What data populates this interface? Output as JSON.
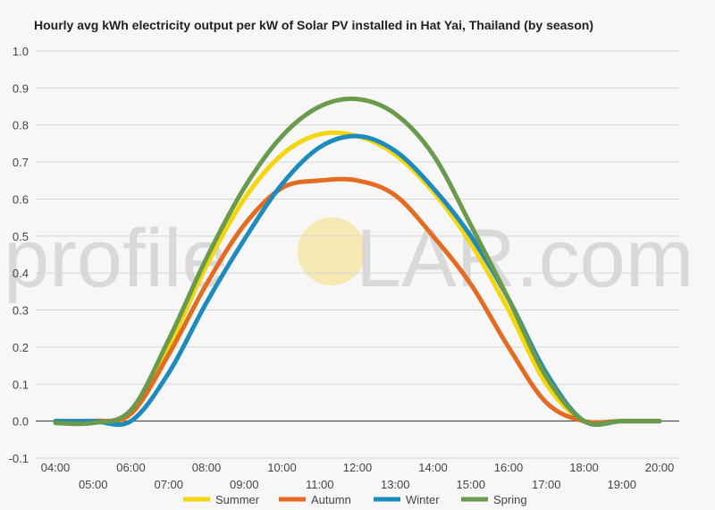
{
  "chart_data": {
    "type": "line",
    "title": "Hourly avg kWh electricity output per kW of Solar PV installed in Hat Yai, Thailand (by season)",
    "xlabel": "",
    "ylabel": "",
    "ylim": [
      -0.1,
      1.0
    ],
    "yticks": [
      "-0.1",
      "0.0",
      "0.1",
      "0.2",
      "0.3",
      "0.4",
      "0.5",
      "0.6",
      "0.7",
      "0.8",
      "0.9",
      "1.0"
    ],
    "x": [
      4,
      5,
      6,
      7,
      8,
      9,
      10,
      11,
      12,
      13,
      14,
      15,
      16,
      17,
      18,
      19,
      20
    ],
    "xticks": [
      "04:00",
      "05:00",
      "06:00",
      "07:00",
      "08:00",
      "09:00",
      "10:00",
      "11:00",
      "12:00",
      "13:00",
      "14:00",
      "15:00",
      "16:00",
      "17:00",
      "18:00",
      "19:00",
      "20:00"
    ],
    "grid": true,
    "legend_position": "bottom",
    "series": [
      {
        "name": "Summer",
        "color": "#f5d50c",
        "values": [
          0.0,
          0.0,
          0.02,
          0.2,
          0.42,
          0.6,
          0.72,
          0.775,
          0.77,
          0.72,
          0.62,
          0.48,
          0.3,
          0.1,
          0.0,
          0.0,
          0.0
        ]
      },
      {
        "name": "Autumn",
        "color": "#e46c22",
        "values": [
          0.0,
          0.0,
          0.02,
          0.18,
          0.37,
          0.53,
          0.63,
          0.65,
          0.65,
          0.61,
          0.5,
          0.37,
          0.2,
          0.05,
          0.0,
          0.0,
          0.0
        ]
      },
      {
        "name": "Winter",
        "color": "#1e8bbf",
        "values": [
          0.0,
          0.0,
          0.0,
          0.13,
          0.32,
          0.49,
          0.64,
          0.74,
          0.77,
          0.73,
          0.63,
          0.5,
          0.33,
          0.13,
          0.0,
          0.0,
          0.0
        ]
      },
      {
        "name": "Spring",
        "color": "#6a9a4c",
        "values": [
          -0.005,
          -0.005,
          0.03,
          0.22,
          0.44,
          0.63,
          0.77,
          0.85,
          0.87,
          0.83,
          0.72,
          0.53,
          0.33,
          0.12,
          0.0,
          0.0,
          0.0
        ]
      }
    ]
  },
  "watermark": {
    "left_text": "profile",
    "right_text": "LAR.com",
    "sun_color": "#f7e9b4"
  }
}
